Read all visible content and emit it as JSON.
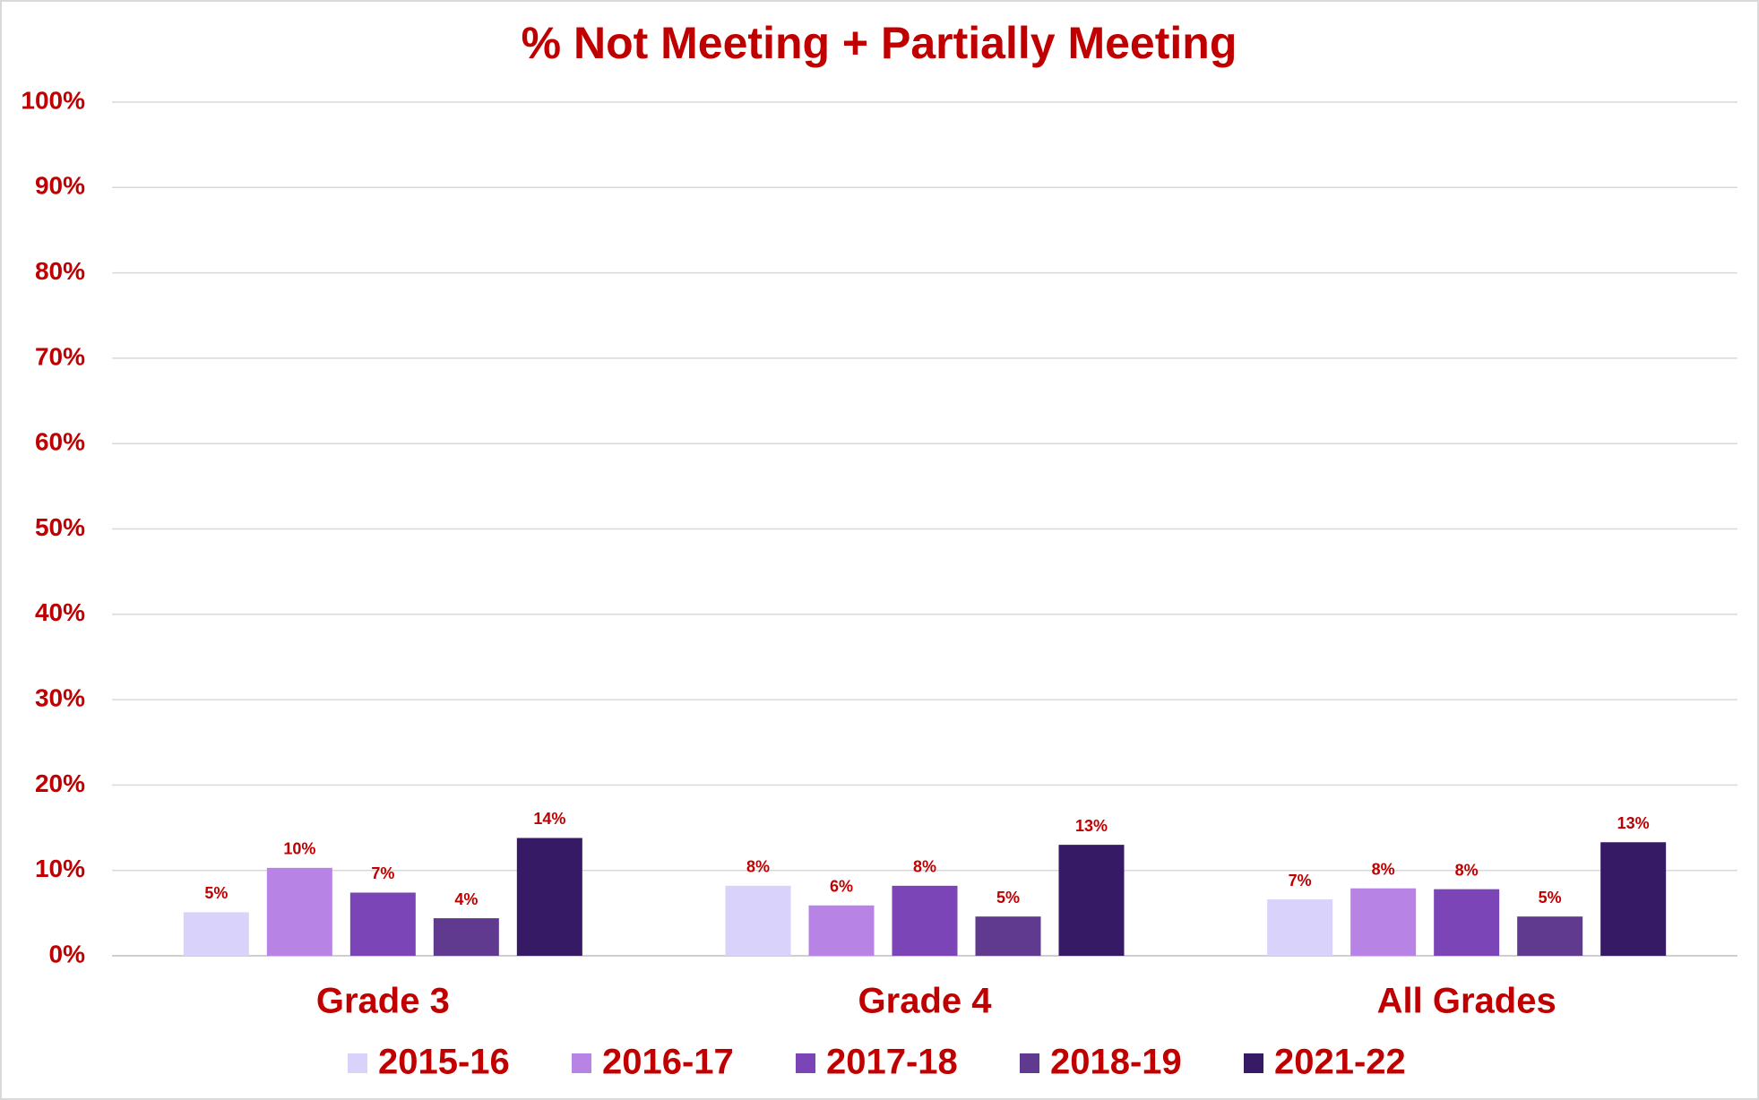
{
  "chart_data": {
    "type": "bar",
    "title": "% Not Meeting + Partially Meeting",
    "categories": [
      "Grade 3",
      "Grade 4",
      "All Grades"
    ],
    "series": [
      {
        "name": "2015-16",
        "color": "#d9d2fb",
        "values": [
          5.1,
          8.2,
          6.6
        ],
        "value_labels": [
          "5%",
          "8%",
          "7%"
        ]
      },
      {
        "name": "2016-17",
        "color": "#b784e6",
        "values": [
          10.3,
          5.9,
          7.9
        ],
        "value_labels": [
          "10%",
          "6%",
          "8%"
        ]
      },
      {
        "name": "2017-18",
        "color": "#7b45b8",
        "values": [
          7.4,
          8.2,
          7.8
        ],
        "value_labels": [
          "7%",
          "8%",
          "8%"
        ]
      },
      {
        "name": "2018-19",
        "color": "#603a8f",
        "values": [
          4.4,
          4.6,
          4.6
        ],
        "value_labels": [
          "4%",
          "5%",
          "5%"
        ]
      },
      {
        "name": "2021-22",
        "color": "#361a66",
        "values": [
          13.8,
          13.0,
          13.3
        ],
        "value_labels": [
          "14%",
          "13%",
          "13%"
        ]
      }
    ],
    "ylim": [
      0,
      100
    ],
    "yticks": [
      {
        "value": 0,
        "label": "0%"
      },
      {
        "value": 10,
        "label": "10%"
      },
      {
        "value": 20,
        "label": "20%"
      },
      {
        "value": 30,
        "label": "30%"
      },
      {
        "value": 40,
        "label": "40%"
      },
      {
        "value": 50,
        "label": "50%"
      },
      {
        "value": 60,
        "label": "60%"
      },
      {
        "value": 70,
        "label": "70%"
      },
      {
        "value": 80,
        "label": "80%"
      },
      {
        "value": 90,
        "label": "90%"
      },
      {
        "value": 100,
        "label": "100%"
      }
    ],
    "grid": true,
    "legend": "bottom"
  }
}
